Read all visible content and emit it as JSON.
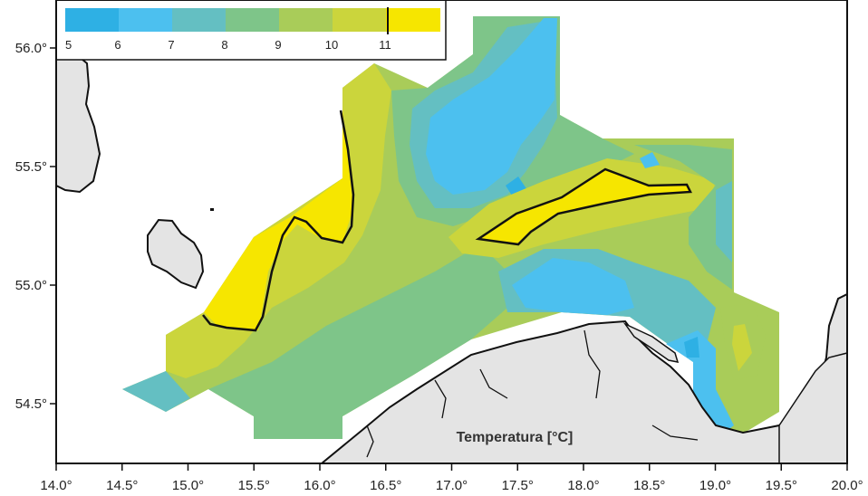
{
  "title": "Temperatura [°C]",
  "x_ticks": [
    "14.0°",
    "14.5°",
    "15.0°",
    "15.5°",
    "16.0°",
    "16.5°",
    "17.0°",
    "17.5°",
    "18.0°",
    "18.5°",
    "19.0°",
    "19.5°",
    "20.0°"
  ],
  "y_ticks": [
    "56.0°",
    "55.5°",
    "55.0°",
    "54.5°"
  ],
  "legend": {
    "labels": [
      "5",
      "6",
      "7",
      "8",
      "9",
      "10",
      "11"
    ],
    "colors": [
      "#2eb0e4",
      "#4cc0ef",
      "#64bfc2",
      "#7ec589",
      "#a9cc59",
      "#cbd53c",
      "#f6e600"
    ],
    "marker_value": "11"
  },
  "colors": {
    "land": "#e4e4e4",
    "coast": "#111111",
    "isotherm": "#111111"
  }
}
